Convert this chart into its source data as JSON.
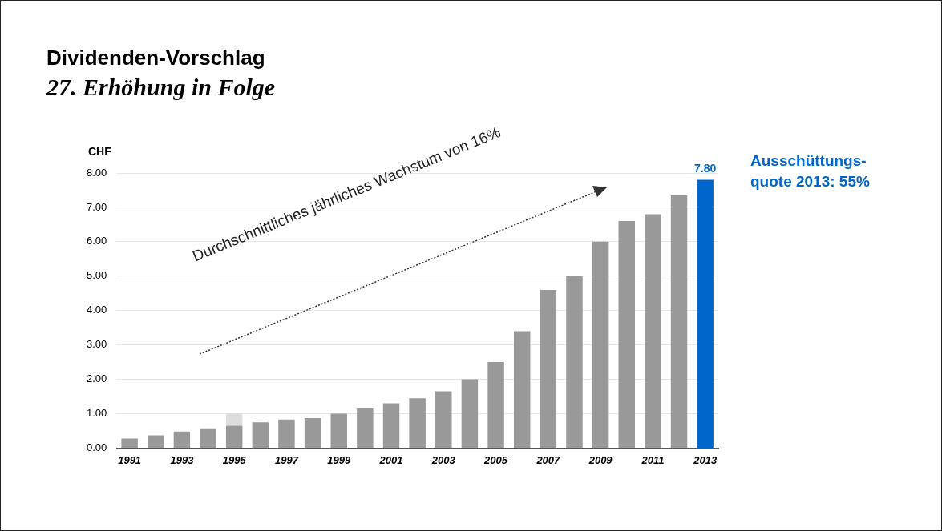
{
  "chart_data": {
    "type": "bar",
    "title": "Dividenden-Vorschlag",
    "subtitle": "27. Erhöhung in Folge",
    "ylabel": "CHF",
    "categories": [
      "1991",
      null,
      "1993",
      null,
      "1995",
      null,
      "1997",
      null,
      "1999",
      null,
      "2001",
      null,
      "2003",
      null,
      "2005",
      null,
      "2007",
      null,
      "2009",
      null,
      "2011",
      null,
      "2013"
    ],
    "stacked": true,
    "series": [
      {
        "colors": [
          "#999999",
          "#999999",
          "#999999",
          "#999999",
          "#999999",
          "#999999",
          "#999999",
          "#999999",
          "#999999",
          "#999999",
          "#999999",
          "#999999",
          "#999999",
          "#999999",
          "#999999",
          "#999999",
          "#999999",
          "#999999",
          "#999999",
          "#999999",
          "#999999",
          "#999999",
          "#0066cc"
        ],
        "values": [
          0.28,
          0.37,
          0.48,
          0.55,
          0.65,
          0.75,
          0.83,
          0.87,
          1.0,
          1.15,
          1.3,
          1.45,
          1.65,
          2.0,
          2.5,
          3.4,
          4.6,
          5.0,
          6.0,
          6.6,
          6.8,
          7.35,
          7.8
        ],
        "value_labels": [
          null,
          null,
          null,
          null,
          null,
          null,
          null,
          null,
          null,
          null,
          null,
          null,
          null,
          null,
          null,
          null,
          null,
          null,
          null,
          null,
          null,
          null,
          "7.80"
        ]
      },
      {
        "color": "#dddddd",
        "values": [
          null,
          null,
          null,
          null,
          0.35,
          null,
          null,
          null,
          null,
          null,
          null,
          null,
          null,
          null,
          null,
          null,
          null,
          null,
          null,
          null,
          null,
          null,
          null
        ]
      }
    ],
    "ylim": [
      0,
      8
    ],
    "yticks": [
      {
        "value": 0,
        "label": "0.00"
      },
      {
        "value": 1,
        "label": "1.00"
      },
      {
        "value": 2,
        "label": "2.00"
      },
      {
        "value": 3,
        "label": "3.00"
      },
      {
        "value": 4,
        "label": "4.00"
      },
      {
        "value": 5,
        "label": "5.00"
      },
      {
        "value": 6,
        "label": "6.00"
      },
      {
        "value": 7,
        "label": "7.00"
      },
      {
        "value": 8,
        "label": "8.00"
      }
    ],
    "grid": "y",
    "legend": false,
    "annotations": [
      "Durchschnittliches jährliches Wachstum von 16%",
      "Ausschüttungs-quote 2013: 55%"
    ]
  }
}
